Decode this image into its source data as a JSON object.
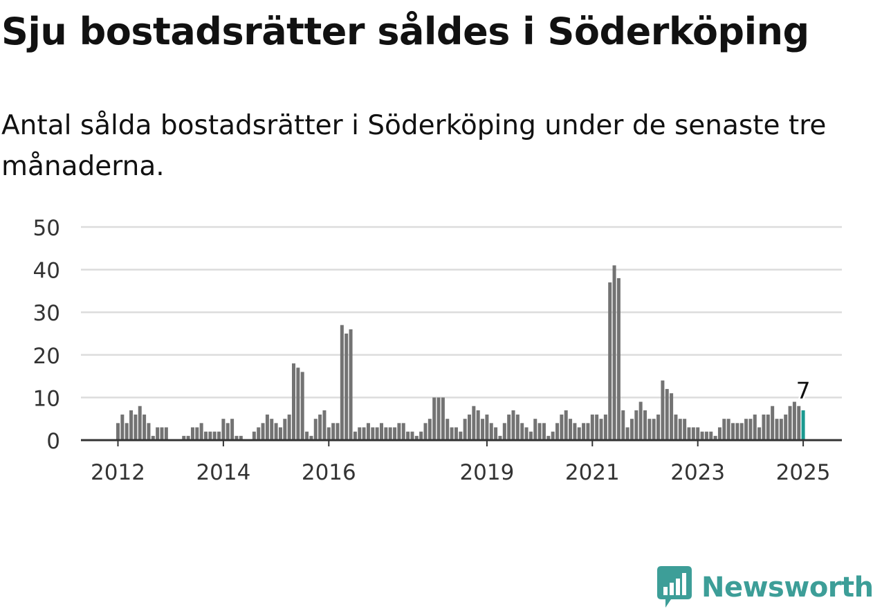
{
  "header": {
    "title": "Sju bostadsrätter såldes i Söderköping",
    "subtitle": "Antal sålda bostadsrätter i Söderköping under de senaste tre månaderna."
  },
  "brand": {
    "name": "Newsworthy",
    "logo_icon": "newsworthy-bar-chart-logo-icon",
    "color": "#3d9e98"
  },
  "colors": {
    "bar": "#737373",
    "highlight": "#1a9990",
    "grid": "#dcdcdc",
    "axis": "#333333",
    "text": "#111111"
  },
  "chart_data": {
    "type": "bar",
    "title": "Sju bostadsrätter såldes i Söderköping",
    "subtitle": "Antal sålda bostadsrätter i Söderköping under de senaste tre månaderna.",
    "xlabel": "",
    "ylabel": "",
    "ylim": [
      0,
      50
    ],
    "yticks": [
      0,
      10,
      20,
      30,
      40,
      50
    ],
    "grid": true,
    "legend": "none",
    "xtick_labels": [
      {
        "label": "2012",
        "date": "2012-01"
      },
      {
        "label": "2014",
        "date": "2014-01"
      },
      {
        "label": "2016",
        "date": "2016-01"
      },
      {
        "label": "2019",
        "date": "2019-01"
      },
      {
        "label": "2021",
        "date": "2021-01"
      },
      {
        "label": "2023",
        "date": "2023-01"
      },
      {
        "label": "2025",
        "date": "2025-01"
      }
    ],
    "start_month": "2012-01",
    "values": [
      4,
      6,
      4,
      7,
      6,
      8,
      6,
      4,
      1,
      3,
      3,
      3,
      0,
      0,
      0,
      1,
      1,
      3,
      3,
      4,
      2,
      2,
      2,
      2,
      5,
      4,
      5,
      1,
      1,
      0,
      0,
      2,
      3,
      4,
      6,
      5,
      4,
      3,
      5,
      6,
      18,
      17,
      16,
      2,
      1,
      5,
      6,
      7,
      3,
      4,
      4,
      27,
      25,
      26,
      2,
      3,
      3,
      4,
      3,
      3,
      4,
      3,
      3,
      3,
      4,
      4,
      2,
      2,
      1,
      2,
      4,
      5,
      10,
      10,
      10,
      5,
      3,
      3,
      2,
      5,
      6,
      8,
      7,
      5,
      6,
      4,
      3,
      1,
      4,
      6,
      7,
      6,
      4,
      3,
      2,
      5,
      4,
      4,
      1,
      2,
      4,
      6,
      7,
      5,
      4,
      3,
      4,
      4,
      6,
      6,
      5,
      6,
      37,
      41,
      38,
      7,
      3,
      5,
      7,
      9,
      7,
      5,
      5,
      6,
      14,
      12,
      11,
      6,
      5,
      5,
      3,
      3,
      3,
      2,
      2,
      2,
      1,
      3,
      5,
      5,
      4,
      4,
      4,
      5,
      5,
      6,
      3,
      6,
      6,
      8,
      5,
      5,
      6,
      8,
      9,
      8,
      7
    ],
    "highlight": {
      "label": "7",
      "value": 7,
      "date": "2025-01"
    }
  }
}
